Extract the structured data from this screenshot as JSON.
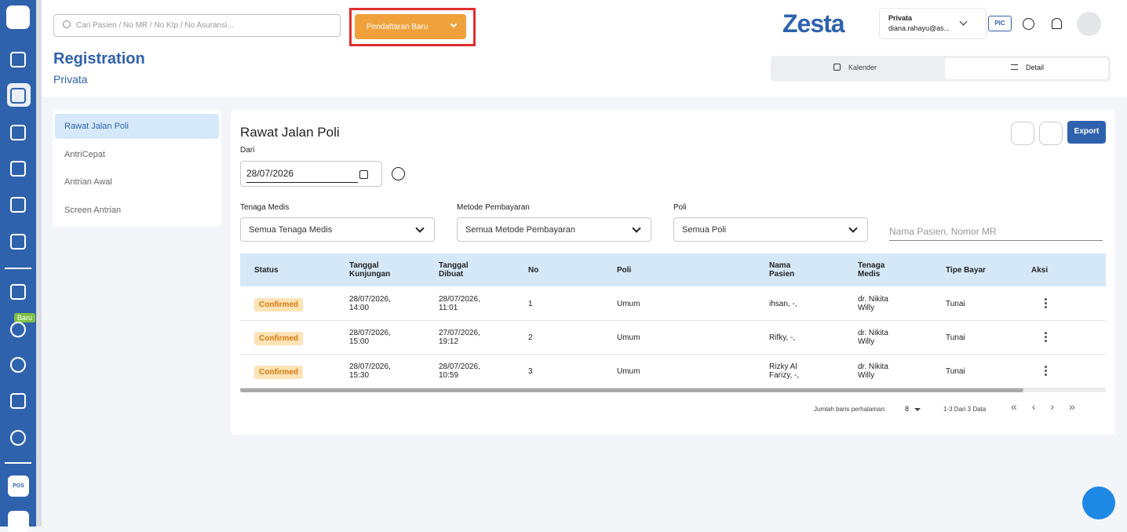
{
  "search": {
    "placeholder": "Cari Pasien / No MR / No Ktp / No Asuransi..."
  },
  "header": {
    "new_button": "Pendaftaran Baru",
    "brand": "Zesta",
    "account_name": "Privata",
    "account_email": "diana.rahayu@as...",
    "pic": "PIC"
  },
  "page": {
    "title": "Registration",
    "subtitle": "Privata"
  },
  "view_toggle": [
    "Kalender",
    "Detail"
  ],
  "sidebar": {
    "badge": "Baru",
    "app": "POS"
  },
  "menu": [
    "Rawat Jalan Poli",
    "AntriCepat",
    "Antrian Awal",
    "Screen Antrian"
  ],
  "panel": {
    "title": "Rawat Jalan Poli",
    "export": "Export",
    "date_label": "Dari",
    "date": "28/07/2026"
  },
  "filters": [
    {
      "label": "Tenaga Medis",
      "value": "Semua Tenaga Medis"
    },
    {
      "label": "Metode Pembayaran",
      "value": "Semua Metode Pembayaran"
    },
    {
      "label": "Poli",
      "value": "Semua Poli"
    }
  ],
  "patient_search": "Nama Pasien, Nomor MR",
  "table": {
    "headers": [
      "Status",
      "Tanggal Kunjungan",
      "Tanggal Dibuat",
      "No",
      "Poli",
      "Nama Pasien",
      "Tenaga Medis",
      "Tipe Bayar",
      "Aksi"
    ],
    "rows": [
      [
        "Confirmed",
        "28/07/2026, 14:00",
        "28/07/2026, 11:01",
        "1",
        "Umum",
        "ihsan, -,",
        "dr. Nikita Willy",
        "Tunai"
      ],
      [
        "Confirmed",
        "28/07/2026, 15:00",
        "27/07/2026, 19:12",
        "2",
        "Umum",
        "Rifky, -,",
        "dr. Nikita Willy",
        "Tunai"
      ],
      [
        "Confirmed",
        "28/07/2026, 15:30",
        "28/07/2026, 10:59",
        "3",
        "Umum",
        "Rizky Al Farizy, -,",
        "dr. Nikita Willy",
        "Tunai"
      ]
    ]
  },
  "pagination": {
    "rows_label": "Jumlah baris perhalaman:",
    "rows_per_page": 8,
    "range": "1-3 Dari 3 Data"
  }
}
